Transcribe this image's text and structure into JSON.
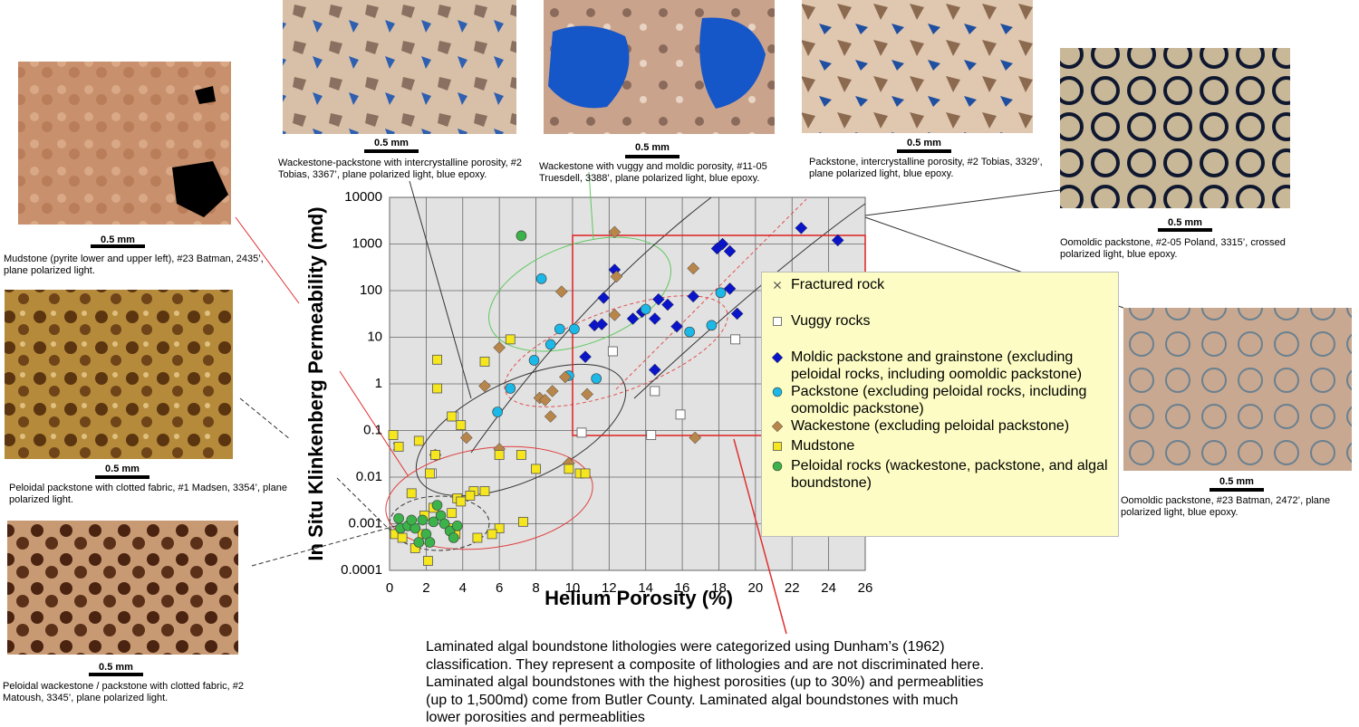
{
  "chart_data": {
    "type": "scatter",
    "xlabel": "Helium Porosity (%)",
    "ylabel": "In Situ Klinkenberg Permeability (md)",
    "xlim": [
      0,
      26
    ],
    "xticks": [
      0,
      2,
      4,
      6,
      8,
      10,
      12,
      14,
      16,
      18,
      20,
      22,
      24,
      26
    ],
    "ylim": [
      0.0001,
      10000
    ],
    "yticks": [
      0.0001,
      0.001,
      0.01,
      0.1,
      1,
      10,
      100,
      1000,
      10000
    ],
    "yscale": "log",
    "grid": true,
    "series": [
      {
        "name": "Fractured rock",
        "marker": "x",
        "color": "#555555",
        "x": [
          2.6,
          2.6,
          1.6,
          0.4
        ],
        "values": [
          3.3,
          0.8,
          0.06,
          0.045
        ]
      },
      {
        "name": "Vuggy rocks",
        "marker": "square",
        "color": "#ffffff",
        "x": [
          12.2,
          18.9,
          3.5,
          10.5,
          14.5,
          15.9,
          14.3,
          2.3
        ],
        "values": [
          5,
          9,
          0.2,
          0.09,
          0.7,
          0.22,
          0.08,
          0.012
        ]
      },
      {
        "name": "Moldic packstone and grainstone (excluding peloidal rocks, including oomoldic packstone)",
        "marker": "diamond",
        "color": "#0a14c8",
        "x": [
          22.5,
          24.5,
          18.2,
          17.9,
          18.6,
          12.3,
          11.7,
          18.6,
          16.6,
          19,
          11.2,
          11.6,
          13.3,
          13.8,
          14.5,
          14.7,
          15.2,
          15.7,
          10.7,
          14.5
        ],
        "values": [
          2200,
          1200,
          1000,
          800,
          700,
          280,
          70,
          110,
          75,
          32,
          18,
          19,
          25,
          35,
          25,
          65,
          50,
          17,
          3.8,
          2
        ]
      },
      {
        "name": "Packstone (excluding peloidal rocks, including oomoldic packstone)",
        "marker": "circle",
        "color": "#1cb8e8",
        "x": [
          8.3,
          8.8,
          9.3,
          10.1,
          7.9,
          6.6,
          5.9,
          11.3,
          14,
          16.4,
          17.6,
          18.1,
          9.8
        ],
        "values": [
          180,
          7,
          15,
          15,
          3.2,
          0.8,
          0.25,
          1.3,
          40,
          13,
          18,
          90,
          1.5
        ]
      },
      {
        "name": "Wackestone (excluding peloidal packstone)",
        "marker": "diamond",
        "color": "#b8864b",
        "x": [
          12.3,
          16.6,
          12.4,
          9.4,
          12.3,
          6,
          9.6,
          8.2,
          8.5,
          8.9,
          8.8,
          10.8,
          5.2,
          4.2,
          2.5,
          6,
          9.8,
          16.7
        ],
        "values": [
          1800,
          300,
          200,
          95,
          30,
          6,
          1.4,
          0.5,
          0.45,
          0.7,
          0.2,
          0.6,
          0.9,
          0.07,
          0.03,
          0.04,
          0.02,
          0.07
        ]
      },
      {
        "name": "Mudstone",
        "marker": "square",
        "color": "#f5e61e",
        "x": [
          0.2,
          0.5,
          1.6,
          2.6,
          2.6,
          5.2,
          6.6,
          3.4,
          2.5,
          3.9,
          4.6,
          5.2,
          6,
          7.2,
          8,
          9.8,
          10.4,
          10.7,
          2.2,
          1.2,
          3.7,
          3.9,
          4.4,
          3.4,
          2.4,
          1.9,
          6,
          7.3,
          5.6,
          4.8,
          2.1,
          0.3,
          0.7,
          1.4,
          1.8,
          3.3,
          3.6
        ],
        "values": [
          0.08,
          0.045,
          0.06,
          3.3,
          0.8,
          3,
          9,
          0.2,
          0.03,
          0.13,
          0.005,
          0.005,
          0.03,
          0.03,
          0.015,
          0.015,
          0.012,
          0.012,
          0.012,
          0.0045,
          0.0035,
          0.003,
          0.004,
          0.0017,
          0.0022,
          0.0015,
          0.0008,
          0.0011,
          0.0006,
          0.0005,
          0.00016,
          0.0006,
          0.0005,
          0.0003,
          0.0006,
          0.0008,
          0.0006
        ]
      },
      {
        "name": "Peloidal rocks (wackestone, packstone, and algal boundstone)",
        "marker": "circle",
        "color": "#3cb34a",
        "x": [
          7.2,
          0.5,
          0.6,
          1,
          1.4,
          1.6,
          2,
          2.4,
          2.8,
          2.6,
          3,
          3.3,
          3.5,
          1.8,
          2.2,
          3.7,
          1.2
        ],
        "values": [
          1500,
          0.0013,
          0.0008,
          0.0009,
          0.0008,
          0.0004,
          0.0006,
          0.0011,
          0.0015,
          0.0025,
          0.001,
          0.0007,
          0.0005,
          0.0012,
          0.0004,
          0.0009,
          0.0012
        ]
      }
    ]
  },
  "photos": [
    {
      "scale": "0.5 mm",
      "caption": "Mudstone (pyrite lower and upper left), #23 Batman, 2435’, plane polarized light."
    },
    {
      "scale": "0.5 mm",
      "caption": "Peloidal packstone with clotted fabric, #1 Madsen, 3354’, plane polarized light."
    },
    {
      "scale": "0.5 mm",
      "caption": "Peloidal wackestone / packstone with clotted fabric, #2 Matoush, 3345’, plane polarized light."
    },
    {
      "scale": "0.5 mm",
      "caption": "Wackestone-packstone with intercrystalline porosity, #2 Tobias, 3367’, plane polarized light, blue epoxy."
    },
    {
      "scale": "0.5 mm",
      "caption": "Wackestone with vuggy and moldic porosity, #11-05 Truesdell, 3388’, plane polarized light, blue epoxy."
    },
    {
      "scale": "0.5 mm",
      "caption": "Packstone, intercrystalline porosity, #2 Tobias, 3329’, plane polarized light, blue epoxy."
    },
    {
      "scale": "0.5 mm",
      "caption": "Oomoldic packstone, #2-05 Poland, 3315’, crossed polarized light, blue epoxy."
    },
    {
      "scale": "0.5 mm",
      "caption": "Oomoldic packstone, #23 Batman, 2472’, plane polarized light, blue epoxy."
    }
  ],
  "note": "Laminated algal boundstone lithologies were categorized using Dunham’s (1962) classification.  They represent a composite of lithologies and are not discriminated here.  Laminated algal boundstones with the highest porosities (up to 30%) and permeablities (up to 1,500md) come from Butler County.  Laminated algal boundstones with much lower porosities and permeablities"
}
